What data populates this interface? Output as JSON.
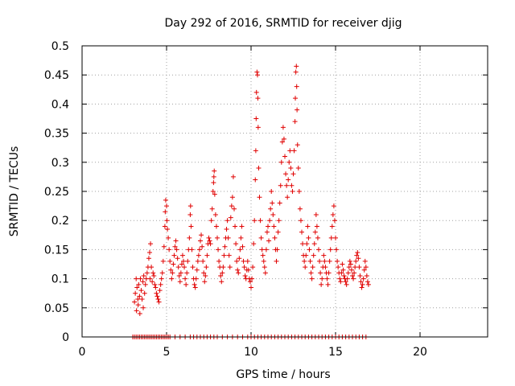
{
  "chart_data": {
    "type": "scatter",
    "title": "Day 292 of 2016, SRMTID for receiver djig",
    "xlabel": "GPS time / hours",
    "ylabel": "SRMTID / TECUs",
    "xlim": [
      0,
      24
    ],
    "ylim": [
      0,
      0.5
    ],
    "xticks": [
      "0",
      "5",
      "10",
      "15",
      "20"
    ],
    "yticks": [
      "0",
      "0.05",
      "0.1",
      "0.15",
      "0.2",
      "0.25",
      "0.3",
      "0.35",
      "0.4",
      "0.45",
      "0.5"
    ],
    "grid": true,
    "marker": "plus",
    "color": "#e00000",
    "series": [
      {
        "name": "SRMTID",
        "points": [
          [
            3.1,
            0.06
          ],
          [
            3.15,
            0.075
          ],
          [
            3.2,
            0.1
          ],
          [
            3.22,
            0.045
          ],
          [
            3.25,
            0.085
          ],
          [
            3.3,
            0.065
          ],
          [
            3.32,
            0.055
          ],
          [
            3.35,
            0.09
          ],
          [
            3.4,
            0.07
          ],
          [
            3.42,
            0.04
          ],
          [
            3.45,
            0.1
          ],
          [
            3.5,
            0.08
          ],
          [
            3.55,
            0.065
          ],
          [
            3.6,
            0.095
          ],
          [
            3.62,
            0.05
          ],
          [
            3.65,
            0.105
          ],
          [
            3.7,
            0.075
          ],
          [
            3.75,
            0.09
          ],
          [
            3.8,
            0.1
          ],
          [
            3.85,
            0.11
          ],
          [
            3.9,
            0.12
          ],
          [
            3.95,
            0.135
          ],
          [
            4.0,
            0.145
          ],
          [
            4.02,
            0.1
          ],
          [
            4.05,
            0.16
          ],
          [
            4.1,
            0.12
          ],
          [
            4.15,
            0.095
          ],
          [
            4.2,
            0.11
          ],
          [
            4.25,
            0.105
          ],
          [
            4.3,
            0.09
          ],
          [
            4.35,
            0.085
          ],
          [
            4.4,
            0.075
          ],
          [
            4.45,
            0.07
          ],
          [
            4.5,
            0.065
          ],
          [
            4.55,
            0.06
          ],
          [
            4.6,
            0.08
          ],
          [
            4.65,
            0.09
          ],
          [
            4.7,
            0.1
          ],
          [
            4.75,
            0.11
          ],
          [
            4.8,
            0.13
          ],
          [
            4.85,
            0.155
          ],
          [
            4.9,
            0.19
          ],
          [
            4.92,
            0.215
          ],
          [
            4.95,
            0.235
          ],
          [
            5.0,
            0.225
          ],
          [
            5.02,
            0.2
          ],
          [
            5.05,
            0.185
          ],
          [
            5.1,
            0.17
          ],
          [
            5.15,
            0.15
          ],
          [
            5.2,
            0.13
          ],
          [
            5.25,
            0.115
          ],
          [
            5.3,
            0.1
          ],
          [
            5.35,
            0.11
          ],
          [
            5.4,
            0.125
          ],
          [
            5.45,
            0.14
          ],
          [
            5.5,
            0.155
          ],
          [
            5.55,
            0.165
          ],
          [
            5.6,
            0.15
          ],
          [
            5.65,
            0.135
          ],
          [
            5.7,
            0.12
          ],
          [
            5.75,
            0.105
          ],
          [
            5.8,
            0.095
          ],
          [
            5.85,
            0.11
          ],
          [
            5.9,
            0.125
          ],
          [
            5.95,
            0.14
          ],
          [
            6.0,
            0.13
          ],
          [
            6.05,
            0.12
          ],
          [
            6.1,
            0.1
          ],
          [
            6.15,
            0.09
          ],
          [
            6.2,
            0.11
          ],
          [
            6.25,
            0.13
          ],
          [
            6.3,
            0.15
          ],
          [
            6.35,
            0.17
          ],
          [
            6.4,
            0.21
          ],
          [
            6.42,
            0.225
          ],
          [
            6.45,
            0.19
          ],
          [
            6.5,
            0.15
          ],
          [
            6.55,
            0.12
          ],
          [
            6.6,
            0.1
          ],
          [
            6.65,
            0.09
          ],
          [
            6.7,
            0.085
          ],
          [
            6.75,
            0.1
          ],
          [
            6.8,
            0.115
          ],
          [
            6.85,
            0.13
          ],
          [
            6.9,
            0.14
          ],
          [
            6.95,
            0.15
          ],
          [
            7.0,
            0.165
          ],
          [
            7.05,
            0.175
          ],
          [
            7.1,
            0.155
          ],
          [
            7.15,
            0.13
          ],
          [
            7.2,
            0.11
          ],
          [
            7.25,
            0.095
          ],
          [
            7.3,
            0.105
          ],
          [
            7.35,
            0.12
          ],
          [
            7.4,
            0.14
          ],
          [
            7.45,
            0.16
          ],
          [
            7.5,
            0.17
          ],
          [
            7.55,
            0.165
          ],
          [
            7.6,
            0.16
          ],
          [
            7.65,
            0.2
          ],
          [
            7.7,
            0.22
          ],
          [
            7.75,
            0.25
          ],
          [
            7.78,
            0.265
          ],
          [
            7.8,
            0.275
          ],
          [
            7.82,
            0.285
          ],
          [
            7.85,
            0.245
          ],
          [
            7.9,
            0.21
          ],
          [
            7.95,
            0.19
          ],
          [
            8.0,
            0.17
          ],
          [
            8.05,
            0.15
          ],
          [
            8.1,
            0.13
          ],
          [
            8.15,
            0.12
          ],
          [
            8.2,
            0.105
          ],
          [
            8.25,
            0.095
          ],
          [
            8.3,
            0.11
          ],
          [
            8.35,
            0.12
          ],
          [
            8.4,
            0.14
          ],
          [
            8.45,
            0.155
          ],
          [
            8.5,
            0.17
          ],
          [
            8.55,
            0.185
          ],
          [
            8.6,
            0.2
          ],
          [
            8.65,
            0.17
          ],
          [
            8.7,
            0.14
          ],
          [
            8.75,
            0.12
          ],
          [
            8.8,
            0.205
          ],
          [
            8.85,
            0.225
          ],
          [
            8.9,
            0.24
          ],
          [
            8.95,
            0.275
          ],
          [
            9.0,
            0.22
          ],
          [
            9.05,
            0.19
          ],
          [
            9.1,
            0.16
          ],
          [
            9.15,
            0.13
          ],
          [
            9.2,
            0.115
          ],
          [
            9.25,
            0.11
          ],
          [
            9.3,
            0.135
          ],
          [
            9.35,
            0.15
          ],
          [
            9.4,
            0.17
          ],
          [
            9.45,
            0.19
          ],
          [
            9.5,
            0.155
          ],
          [
            9.55,
            0.13
          ],
          [
            9.6,
            0.12
          ],
          [
            9.65,
            0.105
          ],
          [
            9.7,
            0.1
          ],
          [
            9.75,
            0.115
          ],
          [
            9.8,
            0.13
          ],
          [
            9.85,
            0.115
          ],
          [
            9.9,
            0.1
          ],
          [
            9.95,
            0.095
          ],
          [
            10.0,
            0.085
          ],
          [
            10.05,
            0.1
          ],
          [
            10.1,
            0.12
          ],
          [
            10.15,
            0.16
          ],
          [
            10.2,
            0.2
          ],
          [
            10.25,
            0.27
          ],
          [
            10.28,
            0.32
          ],
          [
            10.3,
            0.375
          ],
          [
            10.32,
            0.42
          ],
          [
            10.35,
            0.455
          ],
          [
            10.38,
            0.45
          ],
          [
            10.4,
            0.41
          ],
          [
            10.42,
            0.36
          ],
          [
            10.45,
            0.29
          ],
          [
            10.5,
            0.24
          ],
          [
            10.55,
            0.2
          ],
          [
            10.6,
            0.17
          ],
          [
            10.65,
            0.15
          ],
          [
            10.7,
            0.14
          ],
          [
            10.75,
            0.13
          ],
          [
            10.8,
            0.12
          ],
          [
            10.85,
            0.11
          ],
          [
            10.9,
            0.15
          ],
          [
            10.95,
            0.18
          ],
          [
            11.0,
            0.19
          ],
          [
            11.05,
            0.165
          ],
          [
            11.1,
            0.2
          ],
          [
            11.15,
            0.22
          ],
          [
            11.2,
            0.25
          ],
          [
            11.25,
            0.23
          ],
          [
            11.3,
            0.21
          ],
          [
            11.35,
            0.19
          ],
          [
            11.4,
            0.17
          ],
          [
            11.45,
            0.15
          ],
          [
            11.5,
            0.13
          ],
          [
            11.55,
            0.15
          ],
          [
            11.6,
            0.18
          ],
          [
            11.65,
            0.2
          ],
          [
            11.7,
            0.23
          ],
          [
            11.75,
            0.26
          ],
          [
            11.8,
            0.3
          ],
          [
            11.85,
            0.335
          ],
          [
            11.9,
            0.36
          ],
          [
            11.95,
            0.34
          ],
          [
            12.0,
            0.31
          ],
          [
            12.05,
            0.28
          ],
          [
            12.1,
            0.26
          ],
          [
            12.15,
            0.24
          ],
          [
            12.2,
            0.27
          ],
          [
            12.25,
            0.3
          ],
          [
            12.3,
            0.32
          ],
          [
            12.35,
            0.29
          ],
          [
            12.4,
            0.26
          ],
          [
            12.45,
            0.25
          ],
          [
            12.5,
            0.28
          ],
          [
            12.55,
            0.32
          ],
          [
            12.6,
            0.37
          ],
          [
            12.62,
            0.41
          ],
          [
            12.65,
            0.455
          ],
          [
            12.68,
            0.465
          ],
          [
            12.7,
            0.43
          ],
          [
            12.72,
            0.39
          ],
          [
            12.75,
            0.33
          ],
          [
            12.8,
            0.29
          ],
          [
            12.85,
            0.25
          ],
          [
            12.9,
            0.22
          ],
          [
            12.95,
            0.2
          ],
          [
            13.0,
            0.18
          ],
          [
            13.05,
            0.16
          ],
          [
            13.1,
            0.14
          ],
          [
            13.15,
            0.13
          ],
          [
            13.2,
            0.12
          ],
          [
            13.25,
            0.14
          ],
          [
            13.3,
            0.16
          ],
          [
            13.35,
            0.19
          ],
          [
            13.4,
            0.17
          ],
          [
            13.45,
            0.15
          ],
          [
            13.5,
            0.13
          ],
          [
            13.55,
            0.11
          ],
          [
            13.6,
            0.1
          ],
          [
            13.65,
            0.12
          ],
          [
            13.7,
            0.14
          ],
          [
            13.75,
            0.16
          ],
          [
            13.8,
            0.18
          ],
          [
            13.85,
            0.21
          ],
          [
            13.9,
            0.19
          ],
          [
            13.95,
            0.17
          ],
          [
            14.0,
            0.15
          ],
          [
            14.05,
            0.13
          ],
          [
            14.1,
            0.11
          ],
          [
            14.15,
            0.09
          ],
          [
            14.2,
            0.1
          ],
          [
            14.25,
            0.12
          ],
          [
            14.3,
            0.14
          ],
          [
            14.35,
            0.13
          ],
          [
            14.4,
            0.12
          ],
          [
            14.45,
            0.11
          ],
          [
            14.5,
            0.1
          ],
          [
            14.55,
            0.09
          ],
          [
            14.6,
            0.11
          ],
          [
            14.65,
            0.13
          ],
          [
            14.7,
            0.15
          ],
          [
            14.75,
            0.17
          ],
          [
            14.8,
            0.19
          ],
          [
            14.85,
            0.21
          ],
          [
            14.9,
            0.225
          ],
          [
            14.95,
            0.2
          ],
          [
            15.0,
            0.17
          ],
          [
            15.05,
            0.15
          ],
          [
            15.1,
            0.13
          ],
          [
            15.15,
            0.12
          ],
          [
            15.2,
            0.11
          ],
          [
            15.25,
            0.1
          ],
          [
            15.3,
            0.095
          ],
          [
            15.35,
            0.11
          ],
          [
            15.4,
            0.125
          ],
          [
            15.45,
            0.115
          ],
          [
            15.5,
            0.105
          ],
          [
            15.55,
            0.1
          ],
          [
            15.6,
            0.095
          ],
          [
            15.65,
            0.09
          ],
          [
            15.7,
            0.1
          ],
          [
            15.75,
            0.11
          ],
          [
            15.8,
            0.12
          ],
          [
            15.85,
            0.13
          ],
          [
            15.9,
            0.125
          ],
          [
            15.95,
            0.115
          ],
          [
            16.0,
            0.105
          ],
          [
            16.05,
            0.1
          ],
          [
            16.1,
            0.11
          ],
          [
            16.15,
            0.12
          ],
          [
            16.2,
            0.13
          ],
          [
            16.25,
            0.14
          ],
          [
            16.3,
            0.145
          ],
          [
            16.35,
            0.135
          ],
          [
            16.4,
            0.12
          ],
          [
            16.45,
            0.105
          ],
          [
            16.5,
            0.095
          ],
          [
            16.55,
            0.085
          ],
          [
            16.6,
            0.09
          ],
          [
            16.65,
            0.1
          ],
          [
            16.7,
            0.115
          ],
          [
            16.75,
            0.13
          ],
          [
            16.8,
            0.12
          ],
          [
            16.85,
            0.105
          ],
          [
            16.9,
            0.095
          ],
          [
            16.95,
            0.09
          ]
        ]
      }
    ],
    "zero_points_x": [
      3.0,
      3.1,
      3.2,
      3.3,
      3.4,
      3.5,
      3.6,
      3.7,
      3.8,
      3.9,
      4.0,
      4.1,
      4.2,
      4.3,
      4.4,
      4.5,
      4.6,
      4.7,
      4.8,
      4.9,
      5.0,
      5.1,
      5.2,
      5.5,
      5.8,
      6.1,
      6.4,
      6.6,
      6.8,
      7.0,
      7.2,
      7.4,
      7.6,
      7.8,
      8.0,
      8.3,
      8.6,
      8.9,
      9.2,
      9.5,
      9.8,
      10.0,
      10.2,
      10.4,
      10.6,
      10.8,
      11.0,
      11.2,
      11.4,
      11.6,
      11.8,
      12.0,
      12.2,
      12.4,
      12.6,
      12.8,
      13.0,
      13.2,
      13.4,
      13.6,
      13.8,
      14.0,
      14.2,
      14.4,
      14.6,
      14.8,
      15.0,
      15.2,
      15.4,
      15.6,
      15.8,
      16.0,
      16.2,
      16.4,
      16.6,
      16.8
    ]
  }
}
